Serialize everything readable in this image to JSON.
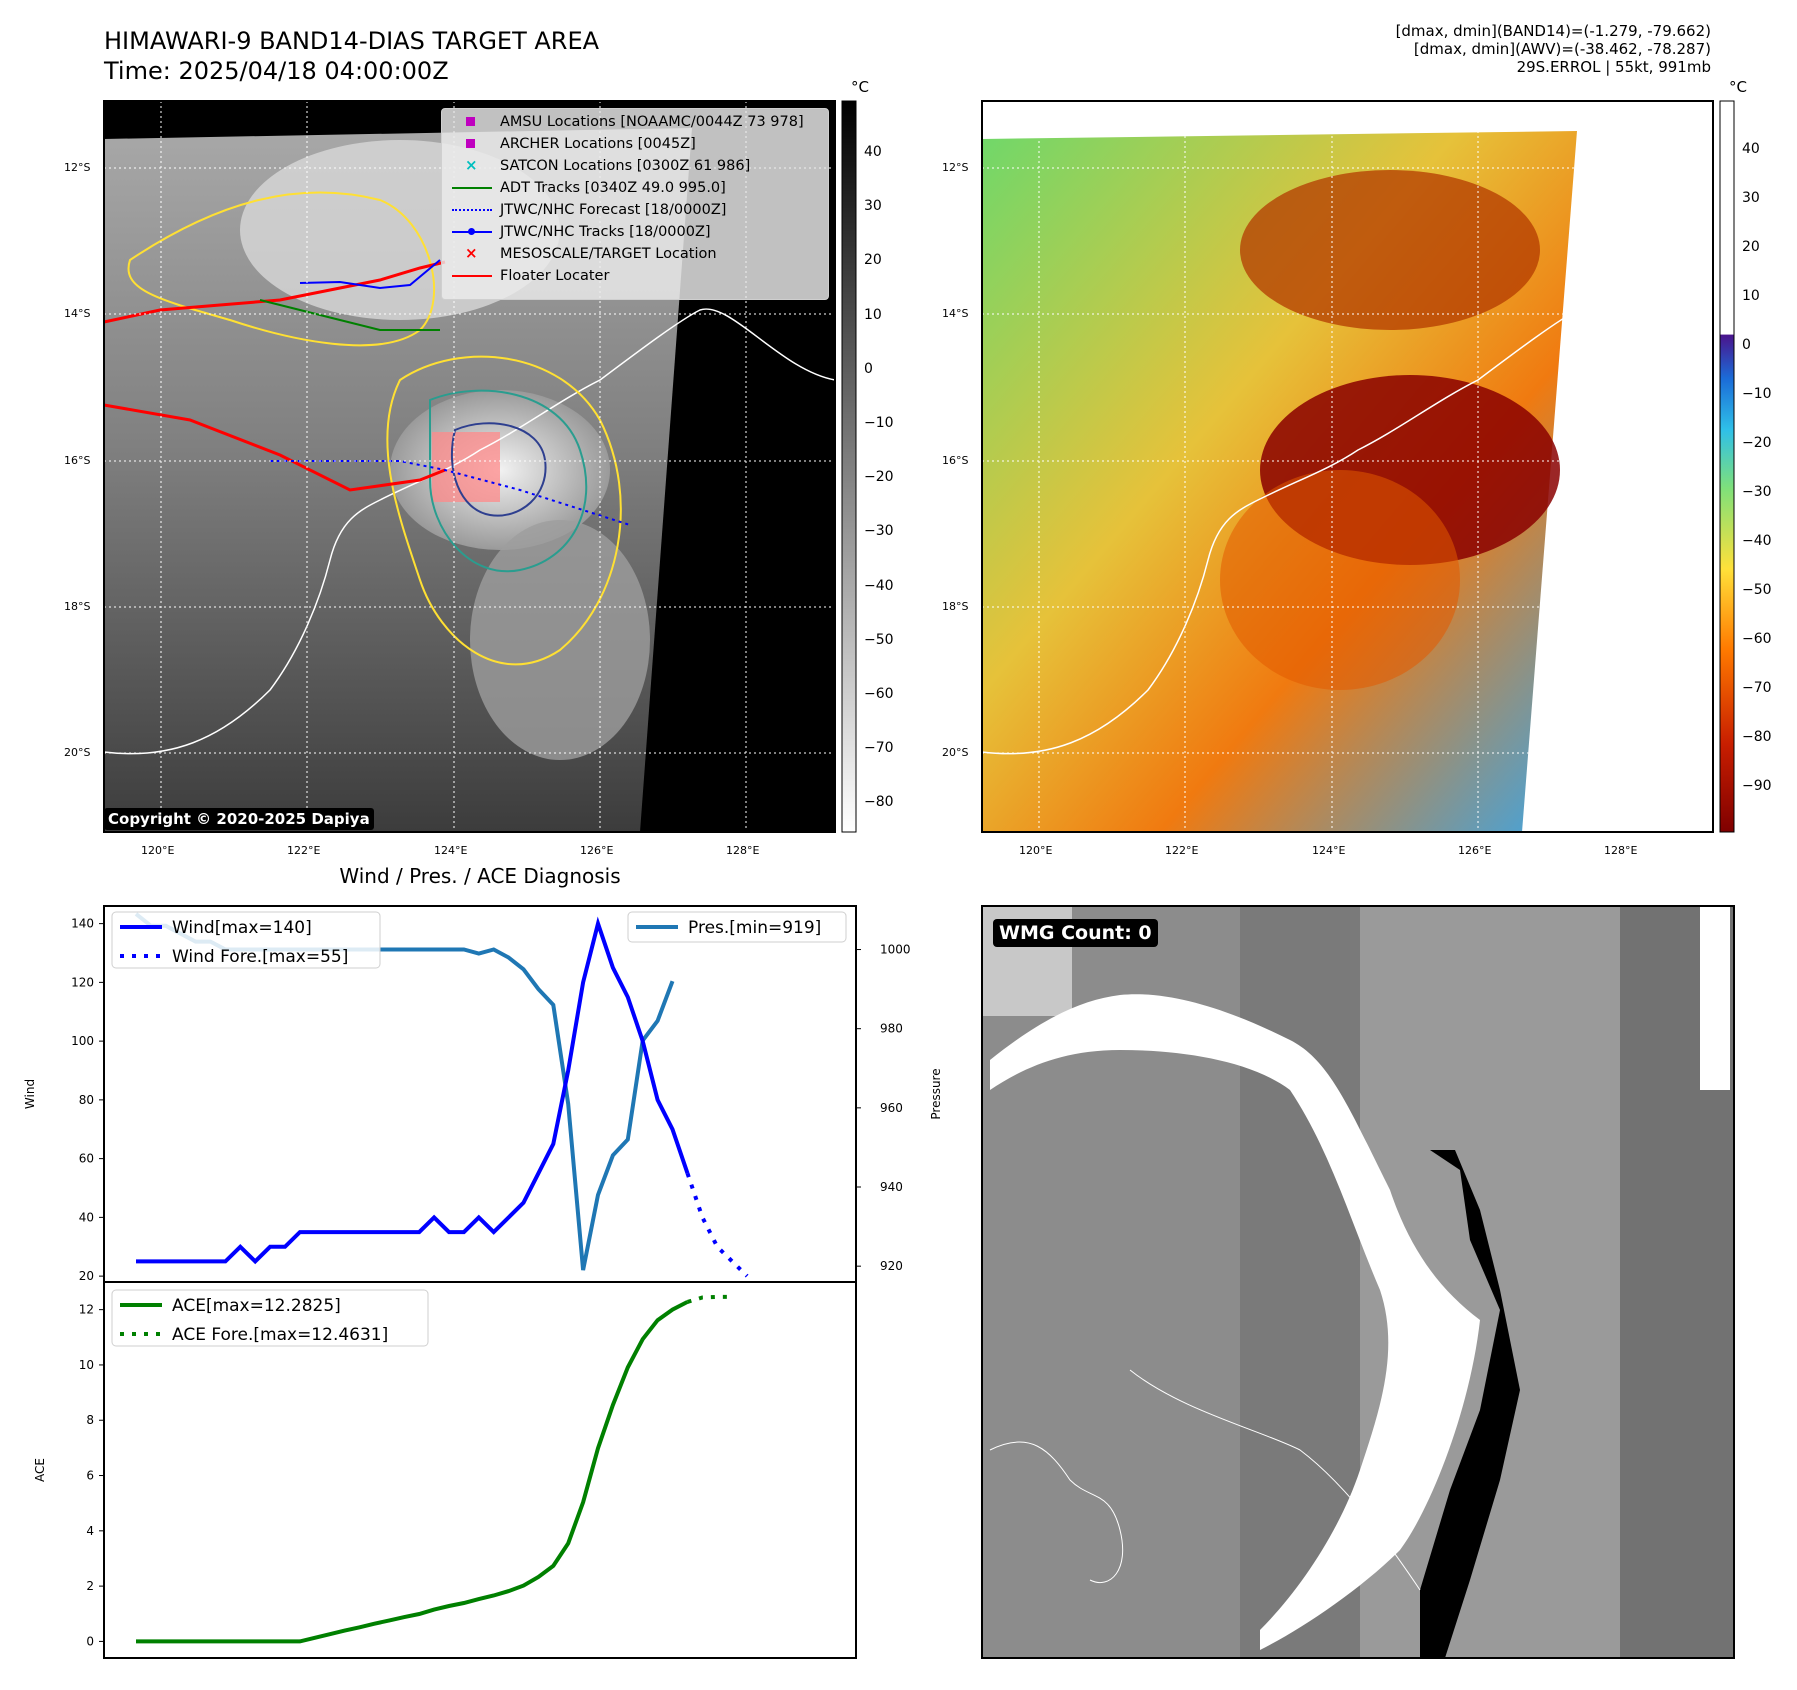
{
  "header": {
    "title_line1": "HIMAWARI-9 BAND14-DIAS TARGET AREA",
    "title_line2": "Time: 2025/04/18 04:00:00Z",
    "info_line1": "[dmax, dmin](BAND14)=(-1.279, -79.662)",
    "info_line2": "[dmax, dmin](AWV)=(-38.462, -78.287)",
    "info_line3": "29S.ERROL | 55kt, 991mb"
  },
  "map_axes": {
    "lat_labels": [
      "12°S",
      "14°S",
      "16°S",
      "18°S",
      "20°S"
    ],
    "lon_labels": [
      "120°E",
      "122°E",
      "124°E",
      "126°E",
      "128°E"
    ]
  },
  "ir_panel": {
    "colorbar_unit": "°C",
    "colorbar_ticks": [
      "40",
      "30",
      "20",
      "10",
      "0",
      "−10",
      "−20",
      "−30",
      "−40",
      "−50",
      "−60",
      "−70",
      "−80"
    ],
    "copyright": "Copyright © 2020-2025 Dapiya",
    "legend": [
      {
        "label": "AMSU Locations [NOAAMC/0044Z 73 978]",
        "color": "#bf00bf",
        "symbol": "square"
      },
      {
        "label": "ARCHER Locations [0045Z]",
        "color": "#bf00bf",
        "symbol": "square"
      },
      {
        "label": "SATCON Locations [0300Z 61 986]",
        "color": "#00bfbf",
        "symbol": "x"
      },
      {
        "label": "ADT Tracks [0340Z 49.0 995.0]",
        "color": "#008000",
        "symbol": "line"
      },
      {
        "label": "JTWC/NHC Forecast [18/0000Z]",
        "color": "#0000ff",
        "symbol": "dotted"
      },
      {
        "label": "JTWC/NHC Tracks [18/0000Z]",
        "color": "#0000ff",
        "symbol": "line-dot"
      },
      {
        "label": "MESOSCALE/TARGET Location",
        "color": "#ff0000",
        "symbol": "x"
      },
      {
        "label": "Floater Locater",
        "color": "#ff0000",
        "symbol": "line"
      }
    ]
  },
  "wv_panel": {
    "colorbar_unit": "°C",
    "colorbar_ticks": [
      "40",
      "30",
      "20",
      "10",
      "0",
      "−10",
      "−20",
      "−30",
      "−40",
      "−50",
      "−60",
      "−70",
      "−80",
      "−90"
    ]
  },
  "wmg_panel": {
    "badge": "WMG Count: 0"
  },
  "chart_data": [
    {
      "type": "line",
      "title": "Wind / Pres. / ACE Diagnosis",
      "ylabel": "Wind",
      "y2label": "Pressure",
      "ylim": [
        18,
        146
      ],
      "y2lim": [
        916,
        1011
      ],
      "yticks": [
        "140",
        "120",
        "100",
        "80",
        "60",
        "40",
        "20"
      ],
      "y2ticks": [
        "1000",
        "980",
        "960",
        "940",
        "920"
      ],
      "series": [
        {
          "name": "Wind[max=140]",
          "color": "#0000ff",
          "style": "solid",
          "values": [
            25,
            25,
            25,
            25,
            25,
            25,
            25,
            30,
            25,
            30,
            30,
            35,
            35,
            35,
            35,
            35,
            35,
            35,
            35,
            35,
            40,
            35,
            35,
            40,
            35,
            40,
            45,
            55,
            65,
            90,
            120,
            140,
            125,
            115,
            100,
            80,
            70,
            55
          ]
        },
        {
          "name": "Wind Fore.[max=55]",
          "color": "#0000ff",
          "style": "dotted",
          "x_offset": 37,
          "values": [
            55,
            40,
            30,
            25,
            20
          ]
        },
        {
          "name": "Pres.[min=919]",
          "color": "#1f77b4",
          "style": "solid",
          "axis": "right",
          "values": [
            1009,
            1006,
            1006,
            1004,
            1002,
            1002,
            1000,
            1000,
            1000,
            1000,
            1000,
            1000,
            1000,
            1000,
            1000,
            1000,
            1000,
            1000,
            1000,
            1000,
            1000,
            1000,
            1000,
            999,
            1000,
            998,
            995,
            990,
            986,
            961,
            919,
            938,
            948,
            952,
            977,
            982,
            992
          ]
        }
      ]
    },
    {
      "type": "line",
      "ylabel": "ACE",
      "ylim": [
        -0.6,
        13
      ],
      "yticks": [
        "12",
        "10",
        "8",
        "6",
        "4",
        "2",
        "0"
      ],
      "series": [
        {
          "name": "ACE[max=12.2825]",
          "color": "#008000",
          "style": "solid",
          "values": [
            0,
            0,
            0,
            0,
            0,
            0,
            0,
            0,
            0,
            0,
            0,
            0,
            0.13,
            0.26,
            0.39,
            0.51,
            0.64,
            0.76,
            0.88,
            0.99,
            1.15,
            1.28,
            1.39,
            1.53,
            1.66,
            1.82,
            2.02,
            2.33,
            2.73,
            3.55,
            5.03,
            6.99,
            8.55,
            9.91,
            10.93,
            11.62,
            12.0,
            12.28
          ]
        },
        {
          "name": "ACE Fore.[max=12.4631]",
          "color": "#008000",
          "style": "dotted",
          "x_offset": 37,
          "values": [
            12.28,
            12.44,
            12.46,
            12.46
          ]
        }
      ]
    }
  ]
}
